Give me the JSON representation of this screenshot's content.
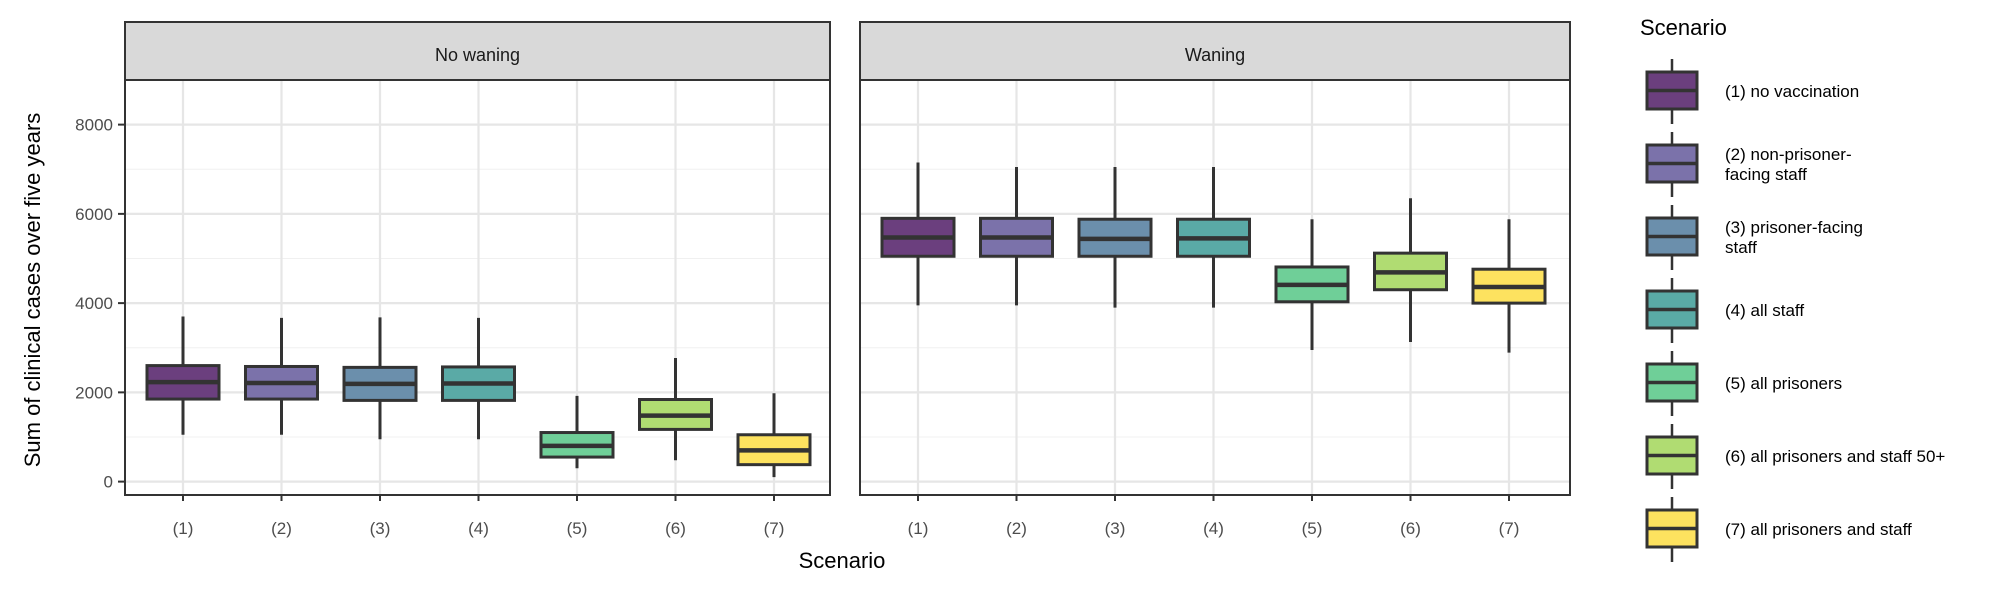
{
  "chart_data": {
    "type": "boxplot",
    "title": "",
    "xlabel": "Scenario",
    "ylabel": "Sum of clinical cases over five years",
    "ylim": [
      -300,
      9000
    ],
    "yticks": [
      0,
      2000,
      4000,
      6000,
      8000
    ],
    "categories": [
      "(1)",
      "(2)",
      "(3)",
      "(4)",
      "(5)",
      "(6)",
      "(7)"
    ],
    "facets": [
      "No waning",
      "Waning"
    ],
    "grid": true,
    "legend": {
      "title": "Scenario",
      "position": "right",
      "entries": [
        {
          "lines": [
            "(1) no vaccination"
          ],
          "color": "#6b3f7e"
        },
        {
          "lines": [
            "(2) non-prisoner-",
            "facing staff"
          ],
          "color": "#7b72aa"
        },
        {
          "lines": [
            "(3) prisoner-facing",
            "staff"
          ],
          "color": "#6b8fac"
        },
        {
          "lines": [
            "(4) all staff"
          ],
          "color": "#5aaaa6"
        },
        {
          "lines": [
            "(5) all prisoners"
          ],
          "color": "#6fcf98"
        },
        {
          "lines": [
            "(6) all prisoners and staff 50+"
          ],
          "color": "#b0dc72"
        },
        {
          "lines": [
            "(7) all prisoners and staff"
          ],
          "color": "#fde25f"
        }
      ]
    },
    "series": [
      {
        "facet": "No waning",
        "boxes": [
          {
            "min": 1050,
            "q1": 1850,
            "median": 2230,
            "q3": 2600,
            "max": 3700
          },
          {
            "min": 1050,
            "q1": 1850,
            "median": 2210,
            "q3": 2580,
            "max": 3670
          },
          {
            "min": 950,
            "q1": 1820,
            "median": 2190,
            "q3": 2560,
            "max": 3680
          },
          {
            "min": 950,
            "q1": 1820,
            "median": 2200,
            "q3": 2570,
            "max": 3670
          },
          {
            "min": 300,
            "q1": 550,
            "median": 800,
            "q3": 1100,
            "max": 1920
          },
          {
            "min": 480,
            "q1": 1170,
            "median": 1480,
            "q3": 1840,
            "max": 2770
          },
          {
            "min": 100,
            "q1": 380,
            "median": 700,
            "q3": 1050,
            "max": 1980
          }
        ]
      },
      {
        "facet": "Waning",
        "boxes": [
          {
            "min": 3950,
            "q1": 5050,
            "median": 5470,
            "q3": 5900,
            "max": 7150
          },
          {
            "min": 3950,
            "q1": 5050,
            "median": 5470,
            "q3": 5900,
            "max": 7050
          },
          {
            "min": 3900,
            "q1": 5050,
            "median": 5440,
            "q3": 5880,
            "max": 7050
          },
          {
            "min": 3900,
            "q1": 5050,
            "median": 5450,
            "q3": 5880,
            "max": 7050
          },
          {
            "min": 2950,
            "q1": 4030,
            "median": 4410,
            "q3": 4810,
            "max": 5880
          },
          {
            "min": 3130,
            "q1": 4300,
            "median": 4690,
            "q3": 5120,
            "max": 6350
          },
          {
            "min": 2890,
            "q1": 4000,
            "median": 4360,
            "q3": 4760,
            "max": 5880
          }
        ]
      }
    ]
  }
}
